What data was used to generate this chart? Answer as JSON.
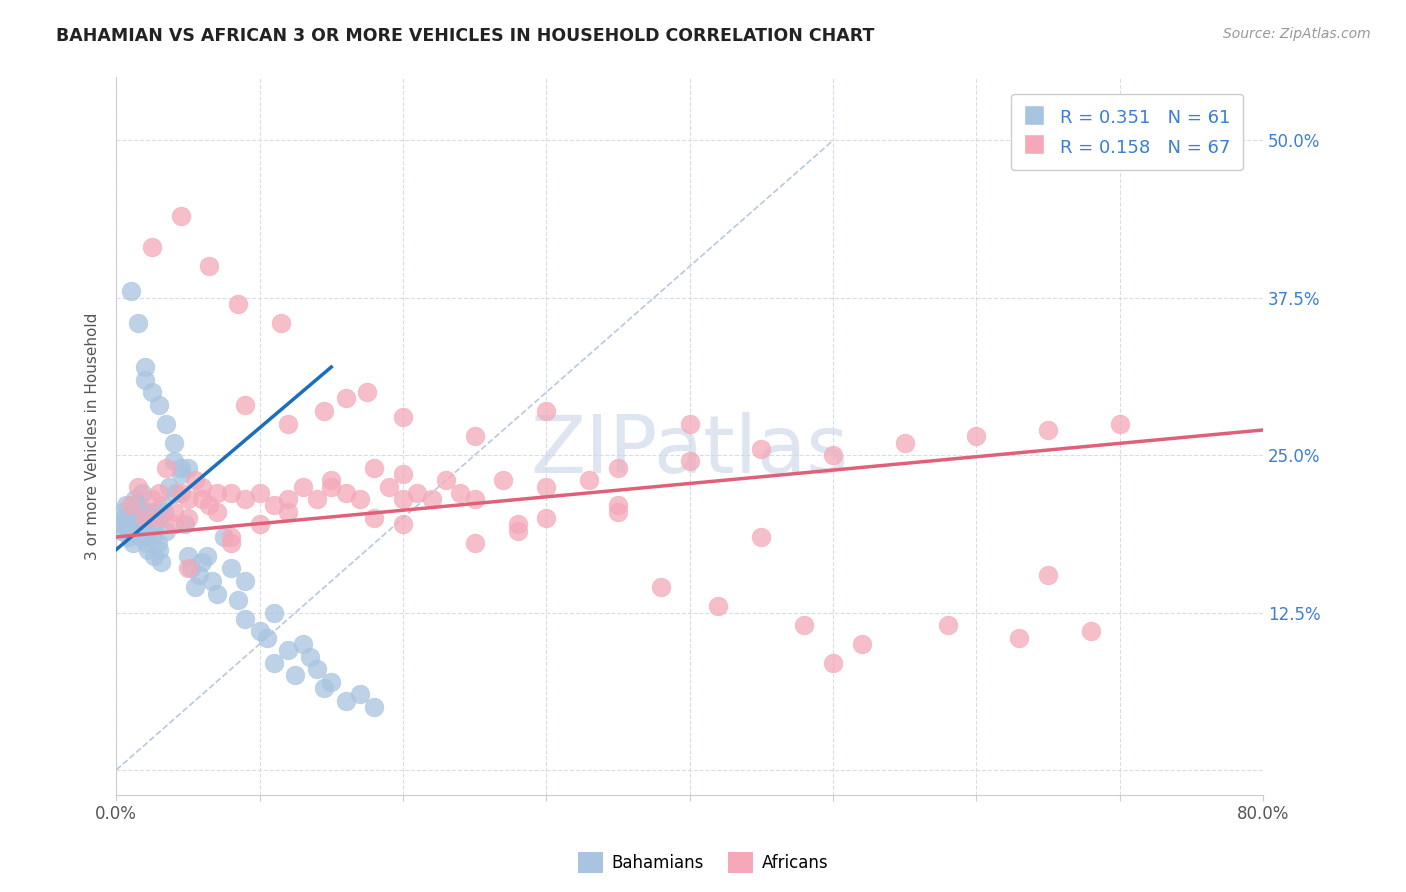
{
  "title": "BAHAMIAN VS AFRICAN 3 OR MORE VEHICLES IN HOUSEHOLD CORRELATION CHART",
  "source": "Source: ZipAtlas.com",
  "ylabel": "3 or more Vehicles in Household",
  "ytick_labels_right": [
    "12.5%",
    "25.0%",
    "37.5%",
    "50.0%"
  ],
  "ytick_values": [
    0.0,
    12.5,
    25.0,
    37.5,
    50.0
  ],
  "ytick_display": [
    12.5,
    25.0,
    37.5,
    50.0
  ],
  "xlim": [
    0.0,
    80.0
  ],
  "ylim": [
    -2.0,
    55.0
  ],
  "bahamian_R": 0.351,
  "bahamian_N": 61,
  "african_R": 0.158,
  "african_N": 67,
  "bahamian_color": "#a8c4e0",
  "african_color": "#f4a8b8",
  "bahamian_line_color": "#1a6fbd",
  "african_line_color": "#e0607a",
  "diagonal_color": "#b8c8e0",
  "legend_text_color": "#3a7fd4",
  "grid_color": "#d8dce8",
  "watermark_color": "#c8d4e8",
  "bah_line_x0": 0.0,
  "bah_line_y0": 17.5,
  "bah_line_x1": 15.0,
  "bah_line_y1": 32.0,
  "afr_line_x0": 0.0,
  "afr_line_y0": 18.5,
  "afr_line_x1": 80.0,
  "afr_line_y1": 27.0,
  "diag_x0": 0.0,
  "diag_y0": 0.0,
  "diag_x1": 50.0,
  "diag_y1": 50.0,
  "bahamian_x": [
    0.3,
    0.4,
    0.5,
    0.6,
    0.7,
    0.8,
    0.9,
    1.0,
    1.1,
    1.2,
    1.3,
    1.4,
    1.5,
    1.6,
    1.7,
    1.8,
    1.9,
    2.0,
    2.1,
    2.2,
    2.3,
    2.4,
    2.5,
    2.6,
    2.7,
    2.8,
    2.9,
    3.0,
    3.1,
    3.2,
    3.3,
    3.5,
    3.7,
    4.0,
    4.2,
    4.5,
    4.8,
    5.0,
    5.2,
    5.5,
    5.8,
    6.0,
    6.3,
    6.7,
    7.0,
    7.5,
    8.0,
    8.5,
    9.0,
    10.0,
    10.5,
    11.0,
    12.0,
    12.5,
    13.0,
    14.0,
    14.5,
    15.0,
    16.0,
    17.0,
    18.0
  ],
  "bahamian_y": [
    19.0,
    19.5,
    20.5,
    20.0,
    21.0,
    19.5,
    18.5,
    20.0,
    19.0,
    18.0,
    21.5,
    20.0,
    19.5,
    21.0,
    18.5,
    22.0,
    19.0,
    20.5,
    18.0,
    17.5,
    19.0,
    20.5,
    18.5,
    17.0,
    19.5,
    20.0,
    18.0,
    17.5,
    16.5,
    21.0,
    20.5,
    19.0,
    22.5,
    24.5,
    22.0,
    24.0,
    19.5,
    17.0,
    16.0,
    14.5,
    15.5,
    16.5,
    17.0,
    15.0,
    14.0,
    18.5,
    16.0,
    13.5,
    12.0,
    11.0,
    10.5,
    8.5,
    9.5,
    7.5,
    10.0,
    8.0,
    6.5,
    7.0,
    5.5,
    6.0,
    5.0
  ],
  "bahamian_y_extra": [
    35.5,
    38.0,
    27.5,
    30.0,
    31.0,
    29.0,
    26.0,
    23.5,
    32.0,
    24.0,
    12.5,
    15.0,
    9.0
  ],
  "bahamian_x_extra": [
    1.5,
    1.0,
    3.5,
    2.5,
    2.0,
    3.0,
    4.0,
    4.5,
    2.0,
    5.0,
    11.0,
    9.0,
    13.5
  ],
  "african_x": [
    1.0,
    1.5,
    2.0,
    2.5,
    3.0,
    3.5,
    4.0,
    4.5,
    5.0,
    5.5,
    6.0,
    6.5,
    7.0,
    8.0,
    9.0,
    10.0,
    11.0,
    12.0,
    13.0,
    14.0,
    15.0,
    16.0,
    17.0,
    18.0,
    19.0,
    20.0,
    21.0,
    22.0,
    23.0,
    24.0,
    25.0,
    27.0,
    30.0,
    33.0,
    35.0,
    40.0,
    45.0,
    50.0,
    55.0,
    60.0,
    65.0,
    70.0,
    3.0,
    4.0,
    5.0,
    6.0,
    7.0,
    8.0,
    10.0,
    12.0,
    15.0,
    18.0,
    20.0,
    25.0,
    28.0,
    35.0,
    38.0,
    42.0,
    48.0,
    52.0,
    58.0,
    63.0,
    68.0,
    8.5,
    11.5,
    14.5,
    17.5
  ],
  "african_y": [
    21.0,
    22.5,
    20.0,
    21.5,
    22.0,
    24.0,
    20.5,
    22.0,
    21.5,
    23.0,
    22.5,
    21.0,
    20.5,
    22.0,
    21.5,
    22.0,
    21.0,
    20.5,
    22.5,
    21.5,
    23.0,
    22.0,
    21.5,
    20.0,
    22.5,
    23.5,
    22.0,
    21.5,
    23.0,
    22.0,
    21.5,
    23.0,
    22.5,
    23.0,
    24.0,
    24.5,
    25.5,
    25.0,
    26.0,
    26.5,
    27.0,
    27.5,
    20.0,
    19.5,
    20.0,
    21.5,
    22.0,
    18.5,
    19.5,
    21.5,
    22.5,
    24.0,
    19.5,
    18.0,
    19.0,
    20.5,
    14.5,
    13.0,
    11.5,
    10.0,
    11.5,
    10.5,
    11.0,
    37.0,
    35.5,
    28.5,
    30.0
  ],
  "african_x_extra": [
    2.5,
    4.5,
    6.5,
    9.0,
    12.0,
    16.0,
    20.0,
    25.0,
    30.0,
    40.0,
    50.0,
    65.0,
    28.0,
    35.0,
    45.0,
    5.0,
    8.0,
    20.0,
    30.0
  ],
  "african_y_extra": [
    41.5,
    44.0,
    40.0,
    29.0,
    27.5,
    29.5,
    28.0,
    26.5,
    28.5,
    27.5,
    8.5,
    15.5,
    19.5,
    21.0,
    18.5,
    16.0,
    18.0,
    21.5,
    20.0
  ]
}
